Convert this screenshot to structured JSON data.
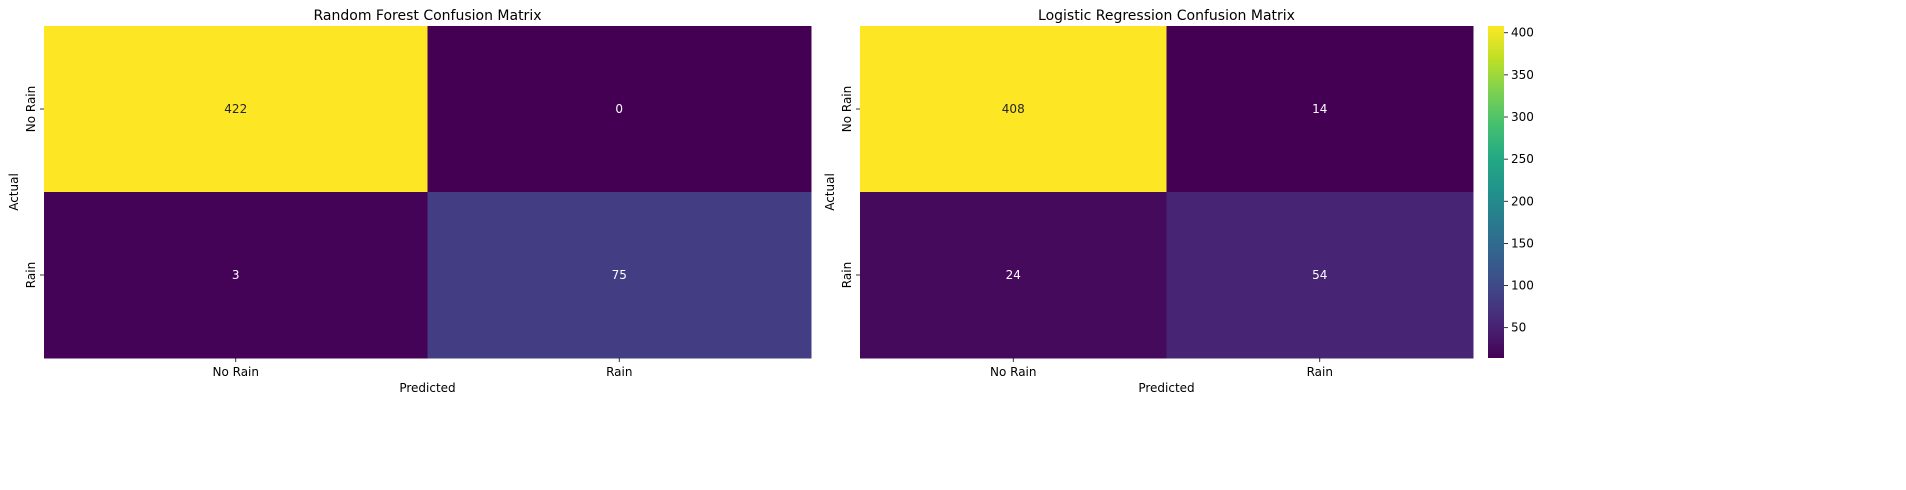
{
  "chart_data": [
    {
      "type": "heatmap",
      "title": "Random Forest Confusion Matrix",
      "xlabel": "Predicted",
      "ylabel": "Actual",
      "x_categories": [
        "No Rain",
        "Rain"
      ],
      "y_categories": [
        "No Rain",
        "Rain"
      ],
      "values": [
        [
          422,
          0
        ],
        [
          3,
          75
        ]
      ],
      "colormap": "viridis",
      "vmin": 0,
      "vmax": 422
    },
    {
      "type": "heatmap",
      "title": "Logistic Regression Confusion Matrix",
      "xlabel": "Predicted",
      "ylabel": "Actual",
      "x_categories": [
        "No Rain",
        "Rain"
      ],
      "y_categories": [
        "No Rain",
        "Rain"
      ],
      "values": [
        [
          408,
          14
        ],
        [
          24,
          54
        ]
      ],
      "colormap": "viridis",
      "vmin": 14,
      "vmax": 408,
      "colorbar": {
        "ticks": [
          50,
          100,
          150,
          200,
          250,
          300,
          350,
          400
        ],
        "tick_labels": [
          "50",
          "100",
          "150",
          "200",
          "250",
          "300",
          "350",
          "400"
        ]
      }
    }
  ]
}
